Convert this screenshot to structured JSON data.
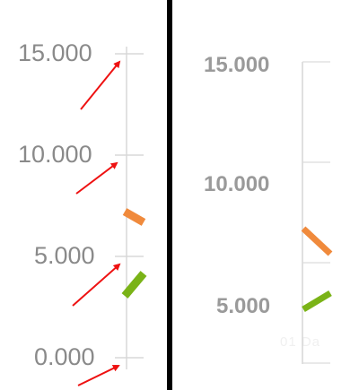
{
  "left_panel": {
    "y_ticks": [
      "15.000",
      "10.000",
      "5.000",
      "0.000"
    ],
    "annotation": "red-arrow-pointing-to-tick",
    "series_colors": [
      "#f08a3c",
      "#7ab317"
    ]
  },
  "right_panel": {
    "y_ticks": [
      "15.000",
      "10.000",
      "5.000"
    ],
    "x_label_fragment": "01 Da",
    "series_colors": [
      "#f08a3c",
      "#7ab317"
    ]
  },
  "colors": {
    "grid": "#d8d8d8",
    "arrow": "#ee1111",
    "divider": "#000000"
  }
}
